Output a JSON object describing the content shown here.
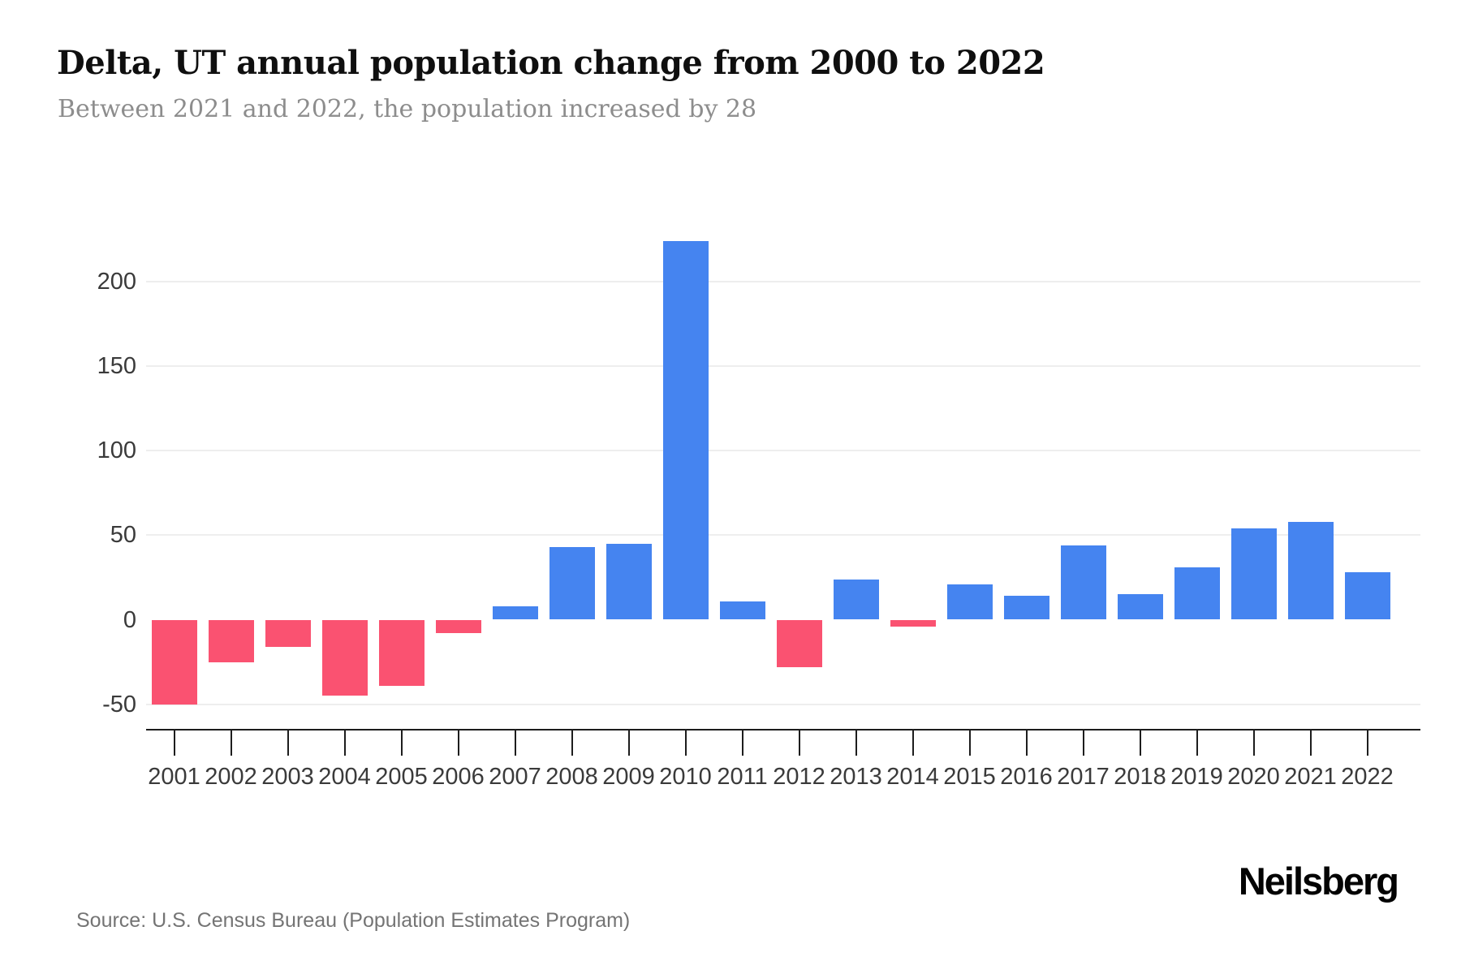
{
  "header": {
    "title": "Delta, UT annual population change from 2000 to 2022",
    "subtitle": "Between 2021 and 2022, the population increased by 28"
  },
  "chart_data": {
    "type": "bar",
    "title": "Delta, UT annual population change from 2000 to 2022",
    "subtitle": "Between 2021 and 2022, the population increased by 28",
    "categories": [
      "2001",
      "2002",
      "2003",
      "2004",
      "2005",
      "2006",
      "2007",
      "2008",
      "2009",
      "2010",
      "2011",
      "2012",
      "2013",
      "2014",
      "2015",
      "2016",
      "2017",
      "2018",
      "2019",
      "2020",
      "2021",
      "2022"
    ],
    "values": [
      -50,
      -25,
      -16,
      -45,
      -39,
      -8,
      8,
      43,
      45,
      224,
      11,
      -28,
      24,
      -4,
      21,
      14,
      44,
      15,
      31,
      54,
      58,
      28
    ],
    "xlabel": "",
    "ylabel": "",
    "ylim": [
      -50,
      224
    ],
    "y_ticks": [
      200,
      150,
      100,
      50,
      0,
      -50
    ],
    "gridlines": "horizontal, at every labeled tick except 0",
    "legend": "none",
    "colors": {
      "positive_bar": "#4584F0",
      "negative_bar": "#FA5271",
      "gridline": "#EEEEEE",
      "axis_line": "#1D1D1D",
      "tick_label": "#3A3A3A",
      "title": "#0F0F0F",
      "subtitle": "#8D8D8D",
      "source_text": "#747474"
    }
  },
  "footer": {
    "source": "Source: U.S. Census Bureau (Population Estimates Program)",
    "brand": "Neilsberg"
  }
}
